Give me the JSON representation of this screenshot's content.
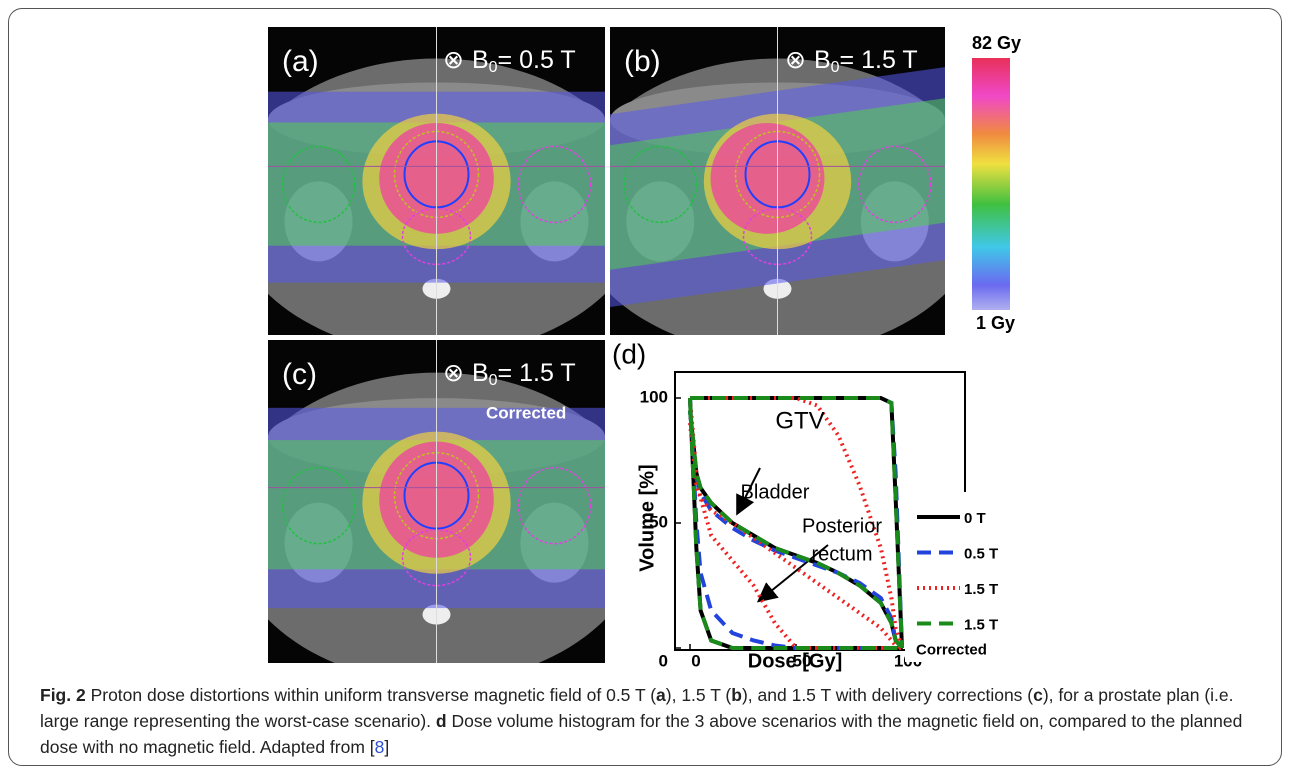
{
  "panels": [
    {
      "label": "(a)",
      "field": {
        "symbol": "⊗",
        "prefix": "B",
        "sub": "0",
        "value": "= 0.5 T"
      }
    },
    {
      "label": "(b)",
      "field": {
        "symbol": "⊗",
        "prefix": "B",
        "sub": "0",
        "value": "= 1.5 T"
      }
    },
    {
      "label": "(c)",
      "field": {
        "symbol": "⊗",
        "prefix": "B",
        "sub": "0",
        "value": "= 1.5 T"
      },
      "note": "Corrected"
    }
  ],
  "colorbar": {
    "max_label": "82 Gy",
    "min_label": "1 Gy"
  },
  "chart_data": {
    "type": "line",
    "panel_label": "(d)",
    "x_label": "Dose [Gy]",
    "y_label": "Volume [%]",
    "xlim": [
      0,
      100
    ],
    "ylim": [
      0,
      100
    ],
    "xticks": [
      0,
      50,
      100
    ],
    "yticks": [
      0,
      50,
      100
    ],
    "annotations": [
      "GTV",
      "Bladder",
      "Posterior",
      "rectum"
    ],
    "x": [
      0,
      3,
      5,
      10,
      20,
      30,
      40,
      50,
      60,
      70,
      80,
      90,
      95,
      97,
      100
    ],
    "series": [
      {
        "name": "0 T",
        "color": "#000000",
        "dash": "solid",
        "curves": [
          {
            "values": [
              100,
              100,
              100,
              100,
              100,
              100,
              100,
              100,
              100,
              100,
              100,
              100,
              98,
              60,
              0
            ]
          },
          {
            "values": [
              95,
              70,
              64,
              58,
              50,
              45,
              40,
              37,
              34,
              30,
              25,
              18,
              10,
              3,
              0
            ]
          },
          {
            "values": [
              100,
              40,
              15,
              3,
              0,
              0,
              0,
              0,
              0,
              0,
              0,
              0,
              0,
              0,
              0
            ]
          }
        ]
      },
      {
        "name": "0.5 T",
        "color": "#2244dd",
        "dash": "dashed",
        "curves": [
          {
            "values": [
              100,
              100,
              100,
              100,
              100,
              100,
              100,
              100,
              100,
              100,
              100,
              100,
              98,
              70,
              0
            ]
          },
          {
            "values": [
              95,
              68,
              62,
              55,
              48,
              43,
              39,
              36,
              33,
              30,
              26,
              20,
              12,
              3,
              0
            ]
          },
          {
            "values": [
              100,
              50,
              30,
              15,
              6,
              3,
              1,
              0,
              0,
              0,
              0,
              0,
              0,
              0,
              0
            ]
          }
        ]
      },
      {
        "name": "1.5 T",
        "color": "#ee2222",
        "dash": "dotted",
        "curves": [
          {
            "values": [
              100,
              100,
              100,
              100,
              100,
              100,
              100,
              100,
              97,
              85,
              65,
              40,
              20,
              8,
              0
            ]
          },
          {
            "values": [
              90,
              65,
              60,
              55,
              50,
              44,
              38,
              32,
              26,
              20,
              14,
              8,
              3,
              1,
              0
            ]
          },
          {
            "values": [
              100,
              70,
              60,
              45,
              35,
              25,
              10,
              0,
              0,
              0,
              0,
              0,
              0,
              0,
              0
            ]
          }
        ]
      },
      {
        "name": "1.5 T",
        "note": "Corrected",
        "color": "#1a8a1a",
        "dash": "dashed",
        "curves": [
          {
            "values": [
              100,
              100,
              100,
              100,
              100,
              100,
              100,
              100,
              100,
              100,
              100,
              100,
              98,
              60,
              0
            ]
          },
          {
            "values": [
              95,
              70,
              64,
              58,
              50,
              45,
              40,
              37,
              34,
              30,
              25,
              18,
              10,
              3,
              0
            ]
          },
          {
            "values": [
              100,
              40,
              15,
              3,
              0,
              0,
              0,
              0,
              0,
              0,
              0,
              0,
              0,
              0,
              0
            ]
          }
        ]
      }
    ]
  },
  "caption": {
    "segments": [
      {
        "text": "Fig. 2",
        "bold": true
      },
      {
        "text": " Proton dose distortions within uniform transverse magnetic field of 0.5 T ("
      },
      {
        "text": "a",
        "bold": true
      },
      {
        "text": "), 1.5 T ("
      },
      {
        "text": "b",
        "bold": true
      },
      {
        "text": "), and 1.5 T with delivery corrections ("
      },
      {
        "text": "c",
        "bold": true
      },
      {
        "text": "), for a prostate plan (i.e. large range representing the worst-case scenario). "
      },
      {
        "text": "d",
        "bold": true
      },
      {
        "text": " Dose volume histogram for the 3 above scenarios with the magnetic field on, compared to the planned dose with no magnetic field. Adapted from ["
      },
      {
        "text": "8",
        "link": true
      },
      {
        "text": "]"
      }
    ]
  }
}
